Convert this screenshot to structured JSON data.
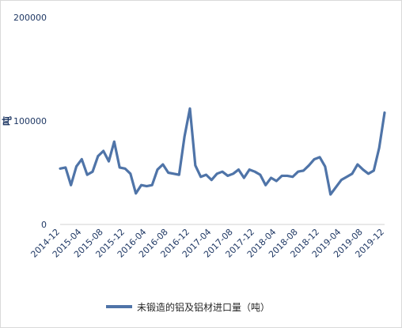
{
  "chart_data": {
    "type": "line",
    "title": "",
    "xlabel": "",
    "ylabel": "吨",
    "ylim": [
      0,
      200000
    ],
    "y_ticks": [
      0,
      100000,
      200000
    ],
    "y_tick_labels": [
      "0",
      "100000",
      "200000"
    ],
    "x_tick_labels": [
      "2014-12",
      "2015-04",
      "2015-08",
      "2015-12",
      "2016-04",
      "2016-08",
      "2016-12",
      "2017-04",
      "2017-08",
      "2017-12",
      "2018-04",
      "2018-08",
      "2018-12",
      "2019-04",
      "2019-08",
      "2019-12"
    ],
    "x_tick_every": 4,
    "grid": "none",
    "legend_position": "bottom",
    "series": [
      {
        "name": "未锻造的铝及铝材进口量（吨）",
        "color": "#4f74a8",
        "x": [
          "2014-12",
          "2015-01",
          "2015-02",
          "2015-03",
          "2015-04",
          "2015-05",
          "2015-06",
          "2015-07",
          "2015-08",
          "2015-09",
          "2015-10",
          "2015-11",
          "2015-12",
          "2016-01",
          "2016-02",
          "2016-03",
          "2016-04",
          "2016-05",
          "2016-06",
          "2016-07",
          "2016-08",
          "2016-09",
          "2016-10",
          "2016-11",
          "2016-12",
          "2017-01",
          "2017-02",
          "2017-03",
          "2017-04",
          "2017-05",
          "2017-06",
          "2017-07",
          "2017-08",
          "2017-09",
          "2017-10",
          "2017-11",
          "2017-12",
          "2018-01",
          "2018-02",
          "2018-03",
          "2018-04",
          "2018-05",
          "2018-06",
          "2018-07",
          "2018-08",
          "2018-09",
          "2018-10",
          "2018-11",
          "2018-12",
          "2019-01",
          "2019-02",
          "2019-03",
          "2019-04",
          "2019-05",
          "2019-06",
          "2019-07",
          "2019-08",
          "2019-09",
          "2019-10",
          "2019-11",
          "2019-12"
        ],
        "values": [
          54000,
          55000,
          38000,
          56000,
          63000,
          48000,
          51000,
          66000,
          71000,
          61000,
          80000,
          55000,
          54000,
          49000,
          30000,
          38000,
          37000,
          38000,
          53000,
          58000,
          50000,
          49000,
          48000,
          85000,
          112000,
          57000,
          46000,
          48000,
          43000,
          49000,
          51000,
          47000,
          49000,
          53000,
          45000,
          53000,
          51000,
          48000,
          38000,
          45000,
          42000,
          47000,
          47000,
          46000,
          51000,
          52000,
          57000,
          63000,
          65000,
          56000,
          29000,
          36000,
          43000,
          46000,
          49000,
          58000,
          53000,
          49000,
          52000,
          74000,
          108000
        ]
      }
    ]
  }
}
